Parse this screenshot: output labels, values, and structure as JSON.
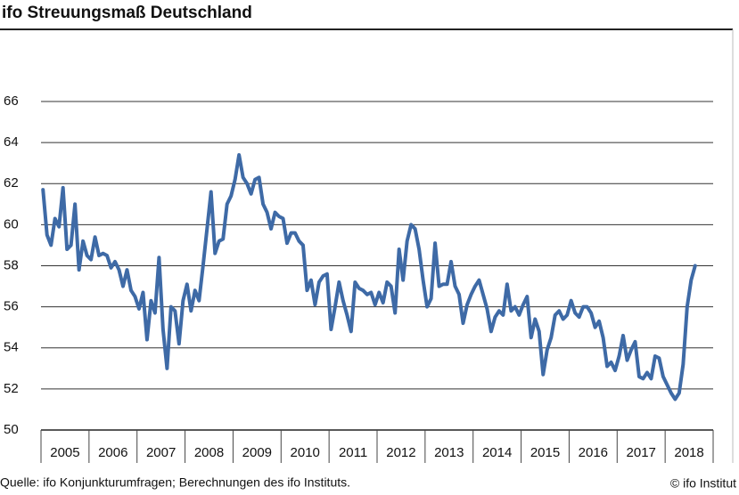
{
  "chart_data": {
    "type": "line",
    "title": "ifo Streuungsmaß Deutschland",
    "source": "Quelle: ifo Konjunkturumfragen; Berechnungen des ifo Instituts.",
    "copyright": "© ifo Institut",
    "categories": [
      null,
      null,
      null,
      null,
      null,
      null,
      "2005",
      null,
      null,
      null,
      null,
      null,
      null,
      null,
      null,
      null,
      null,
      null,
      "2006",
      null,
      null,
      null,
      null,
      null,
      null,
      null,
      null,
      null,
      null,
      null,
      "2007",
      null,
      null,
      null,
      null,
      null,
      null,
      null,
      null,
      null,
      null,
      null,
      "2008",
      null,
      null,
      null,
      null,
      null,
      null,
      null,
      null,
      null,
      null,
      null,
      "2009",
      null,
      null,
      null,
      null,
      null,
      null,
      null,
      null,
      null,
      null,
      null,
      "2010",
      null,
      null,
      null,
      null,
      null,
      null,
      null,
      null,
      null,
      null,
      null,
      "2011",
      null,
      null,
      null,
      null,
      null,
      null,
      null,
      null,
      null,
      null,
      null,
      "2012",
      null,
      null,
      null,
      null,
      null,
      null,
      null,
      null,
      null,
      null,
      null,
      "2013",
      null,
      null,
      null,
      null,
      null,
      null,
      null,
      null,
      null,
      null,
      null,
      "2014",
      null,
      null,
      null,
      null,
      null,
      null,
      null,
      null,
      null,
      null,
      null,
      "2015",
      null,
      null,
      null,
      null,
      null,
      null,
      null,
      null,
      null,
      null,
      null,
      "2016",
      null,
      null,
      null,
      null,
      null,
      null,
      null,
      null,
      null,
      null,
      null,
      "2017",
      null,
      null,
      null,
      null,
      null,
      null,
      null,
      null,
      null,
      null,
      null,
      "2018",
      null,
      null,
      null,
      null,
      null
    ],
    "series": [
      {
        "name": "ifo Streuungsmaß",
        "color": "#3e6aa6",
        "values": [
          61.7,
          59.5,
          59.0,
          60.3,
          59.9,
          61.8,
          58.8,
          59.0,
          61.0,
          57.8,
          59.2,
          58.5,
          58.3,
          59.4,
          58.5,
          58.6,
          58.5,
          57.9,
          58.2,
          57.8,
          57.0,
          57.8,
          56.8,
          56.5,
          55.9,
          56.7,
          54.4,
          56.3,
          55.7,
          58.4,
          54.9,
          53.0,
          56.0,
          55.8,
          54.2,
          56.3,
          57.1,
          55.8,
          56.8,
          56.3,
          58.0,
          59.8,
          61.6,
          58.6,
          59.2,
          59.3,
          61.0,
          61.4,
          62.2,
          63.4,
          62.3,
          62.0,
          61.5,
          62.2,
          62.3,
          61.0,
          60.6,
          59.8,
          60.6,
          60.4,
          60.3,
          59.1,
          59.6,
          59.6,
          59.2,
          59.0,
          56.8,
          57.3,
          56.1,
          57.2,
          57.5,
          57.6,
          54.9,
          56.0,
          57.2,
          56.3,
          55.6,
          54.8,
          57.2,
          56.9,
          56.8,
          56.6,
          56.7,
          56.1,
          56.7,
          56.2,
          57.2,
          57.0,
          55.7,
          58.8,
          57.3,
          59.2,
          60.0,
          59.8,
          58.8,
          57.3,
          56.0,
          56.4,
          59.1,
          57.0,
          57.1,
          57.1,
          58.2,
          57.0,
          56.6,
          55.2,
          56.1,
          56.6,
          57.0,
          57.3,
          56.6,
          55.9,
          54.8,
          55.5,
          55.8,
          55.6,
          57.1,
          55.8,
          56.0,
          55.6,
          56.1,
          56.5,
          54.5,
          55.4,
          54.8,
          52.7,
          53.9,
          54.5,
          55.6,
          55.8,
          55.4,
          55.6,
          56.3,
          55.7,
          55.5,
          56.0,
          56.0,
          55.7,
          55.0,
          55.3,
          54.5,
          53.1,
          53.3,
          52.9,
          53.6,
          54.6,
          53.4,
          53.9,
          54.3,
          52.6,
          52.5,
          52.8,
          52.5,
          53.6,
          53.5,
          52.6,
          52.2,
          51.8,
          51.5,
          51.8,
          53.2,
          56.0,
          57.3,
          58.0,
          null,
          null,
          null,
          null
        ]
      }
    ],
    "ylim": [
      50,
      66
    ],
    "yticks": [
      50,
      52,
      54,
      56,
      58,
      60,
      62,
      64,
      66
    ],
    "grid": true
  }
}
